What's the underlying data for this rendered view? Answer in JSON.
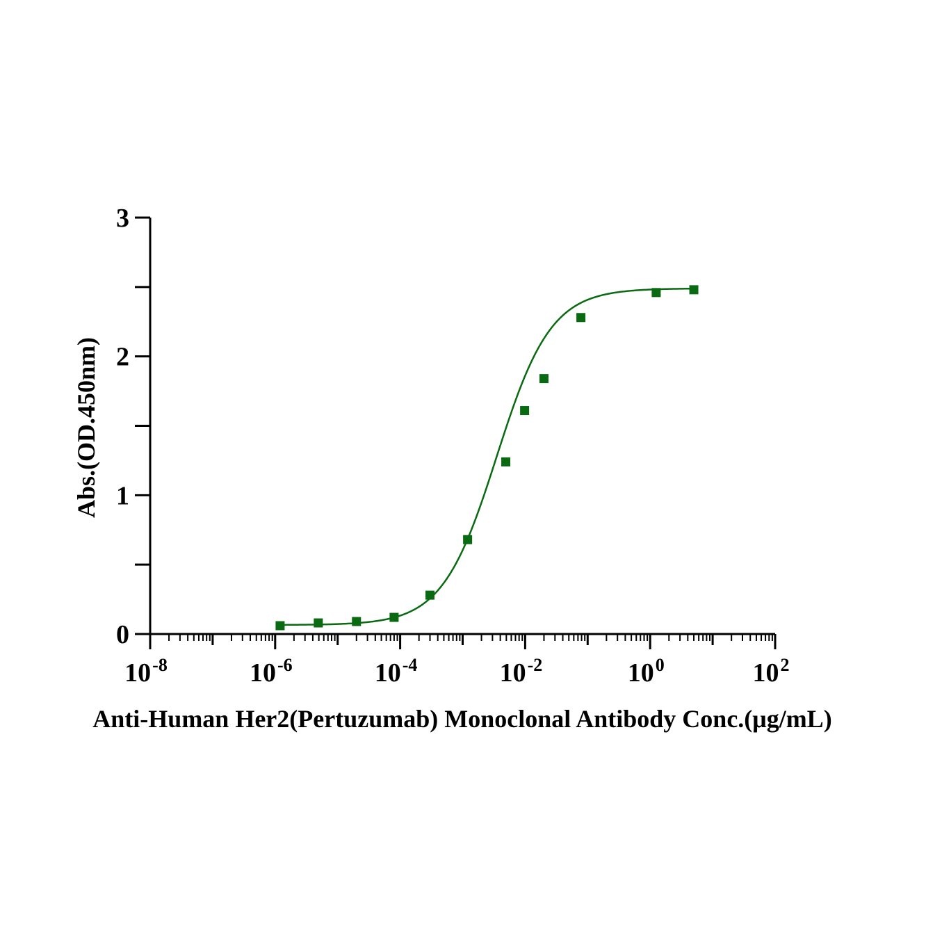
{
  "chart_data": {
    "type": "scatter",
    "title": "",
    "xlabel": "Anti-Human Her2(Pertuzumab) Monoclonal Antibody Conc.(μg/mL)",
    "ylabel": "Abs.(OD.450nm)",
    "x_scale": "log10",
    "xlim": [
      1e-08,
      100
    ],
    "ylim": [
      0,
      3
    ],
    "x_ticks": [
      {
        "base": "10",
        "exp": "-8"
      },
      {
        "base": "10",
        "exp": "-6"
      },
      {
        "base": "10",
        "exp": "-4"
      },
      {
        "base": "10",
        "exp": "-2"
      },
      {
        "base": "10",
        "exp": "0"
      },
      {
        "base": "10",
        "exp": "2"
      }
    ],
    "y_ticks": [
      "0",
      "1",
      "2",
      "3"
    ],
    "grid": false,
    "color": "#0a6a12",
    "marker": "square",
    "fit": "4PL sigmoid",
    "series": [
      {
        "x": [
          1.2e-06,
          4.9e-06,
          2e-05,
          8e-05,
          0.0003,
          0.0012,
          0.0049,
          0.0098,
          0.02,
          0.078,
          1.25,
          5
        ],
        "y": [
          0.06,
          0.08,
          0.09,
          0.12,
          0.28,
          0.68,
          1.24,
          1.61,
          1.84,
          2.28,
          2.46,
          2.48
        ]
      }
    ]
  }
}
